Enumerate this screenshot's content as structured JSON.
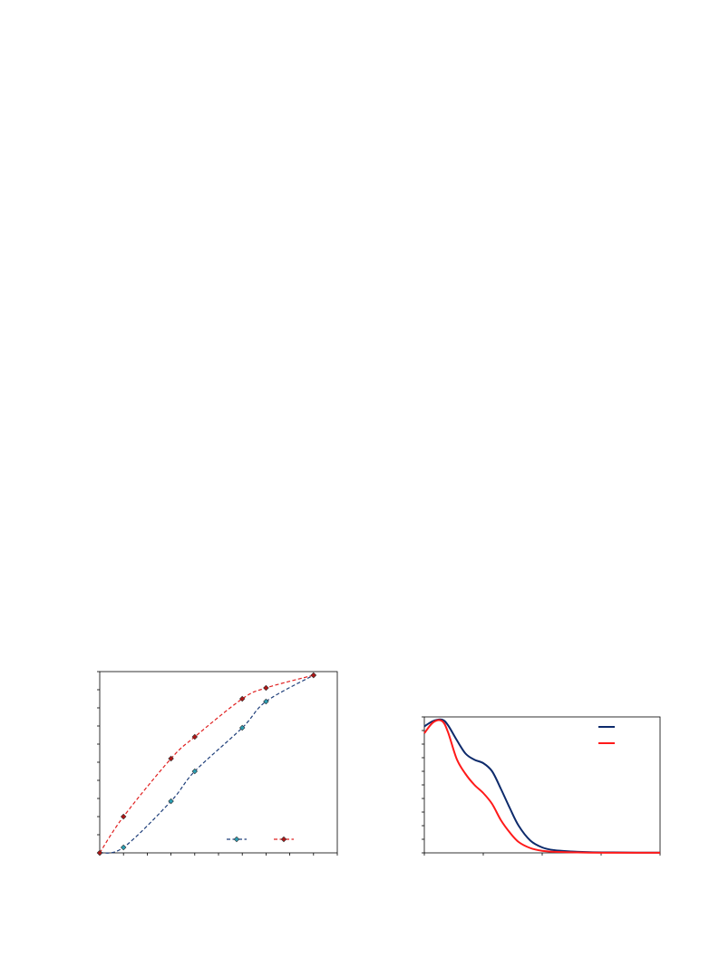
{
  "colors": {
    "series1": "#1f3f7a",
    "series1_marker": "#2a9fb4",
    "series2": "#e02020",
    "series2_marker": "#b01515",
    "dens1": "#0d2a6b",
    "dens2": "#ff1a1a",
    "axis": "#000000"
  },
  "chart_data": [
    {
      "type": "line",
      "grid": false,
      "legend": "bottom-right",
      "x": [
        0,
        1,
        3,
        4,
        6,
        7,
        9
      ],
      "xlim": [
        0,
        10
      ],
      "ylim": [
        0,
        10
      ],
      "x_ticks": 10,
      "y_ticks": 10,
      "series": [
        {
          "values": [
            0,
            0.3,
            2.85,
            4.5,
            6.9,
            8.35,
            9.8
          ],
          "style": "dashed",
          "marker": "diamond"
        },
        {
          "values": [
            0,
            2.0,
            5.2,
            6.4,
            8.5,
            9.1,
            9.8
          ],
          "style": "dashed",
          "marker": "diamond"
        }
      ]
    },
    {
      "type": "line",
      "grid": false,
      "legend": "top-right",
      "xlim": [
        0,
        4
      ],
      "ylim": [
        0,
        1
      ],
      "x_ticks": 4,
      "y_ticks": 10,
      "series": [
        {
          "style": "solid",
          "x": [
            0,
            0.15,
            0.3,
            0.4,
            0.55,
            0.7,
            0.85,
            1.0,
            1.15,
            1.3,
            1.45,
            1.6,
            1.8,
            2.0,
            2.2,
            2.5,
            2.8,
            3.2,
            3.6,
            4.0
          ],
          "values": [
            0.93,
            0.97,
            0.98,
            0.94,
            0.83,
            0.73,
            0.685,
            0.66,
            0.6,
            0.47,
            0.33,
            0.2,
            0.09,
            0.04,
            0.02,
            0.01,
            0.005,
            0.003,
            0.002,
            0.002
          ]
        },
        {
          "style": "solid",
          "x": [
            0,
            0.15,
            0.3,
            0.4,
            0.55,
            0.7,
            0.85,
            1.0,
            1.15,
            1.3,
            1.45,
            1.6,
            1.8,
            2.0,
            2.2,
            2.5,
            2.8,
            3.2,
            3.6,
            4.0
          ],
          "values": [
            0.88,
            0.96,
            0.97,
            0.89,
            0.69,
            0.58,
            0.5,
            0.44,
            0.36,
            0.24,
            0.15,
            0.08,
            0.035,
            0.015,
            0.008,
            0.004,
            0.002,
            0.001,
            0.001,
            0.001
          ]
        }
      ]
    }
  ]
}
